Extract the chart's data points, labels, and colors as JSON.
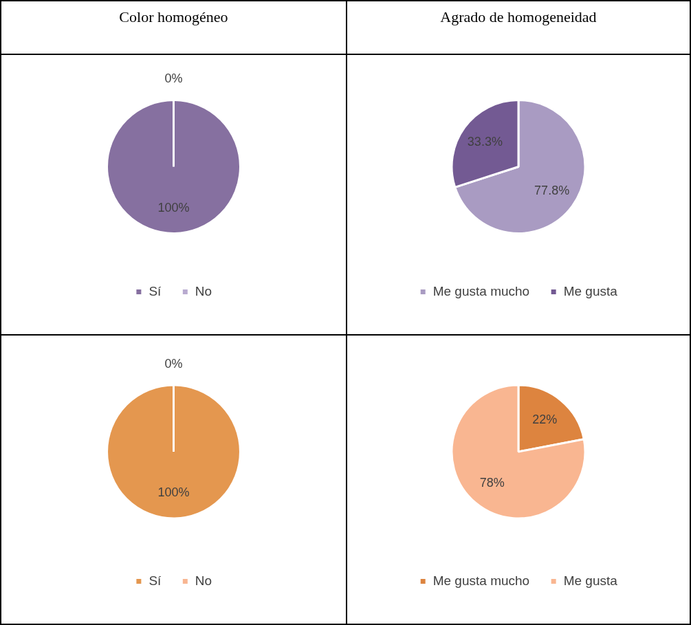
{
  "chart_data": [
    {
      "type": "pie",
      "title": "Color homogéneo",
      "categories": [
        "Sí",
        "No"
      ],
      "values": [
        100,
        0
      ],
      "colors": [
        "#8670a0",
        "#b9abd0"
      ],
      "value_labels": [
        "100%",
        "0%"
      ],
      "legend": "bottom"
    },
    {
      "type": "pie",
      "title": "Agrado de homogeneidad",
      "categories": [
        "Me gusta mucho",
        "Me gusta"
      ],
      "values": [
        77.8,
        33.3
      ],
      "colors": [
        "#a99bc2",
        "#735a93"
      ],
      "value_labels": [
        "77.8%",
        "33.3%"
      ],
      "legend": "bottom"
    },
    {
      "type": "pie",
      "categories": [
        "Sí",
        "No"
      ],
      "values": [
        100,
        0
      ],
      "colors": [
        "#e4974f",
        "#f8b692"
      ],
      "value_labels": [
        "100%",
        "0%"
      ],
      "legend": "bottom"
    },
    {
      "type": "pie",
      "categories": [
        "Me gusta mucho",
        "Me gusta"
      ],
      "values": [
        22,
        78
      ],
      "colors": [
        "#dd843f",
        "#f9b691"
      ],
      "value_labels": [
        "22%",
        "78%"
      ],
      "legend": "bottom"
    }
  ]
}
